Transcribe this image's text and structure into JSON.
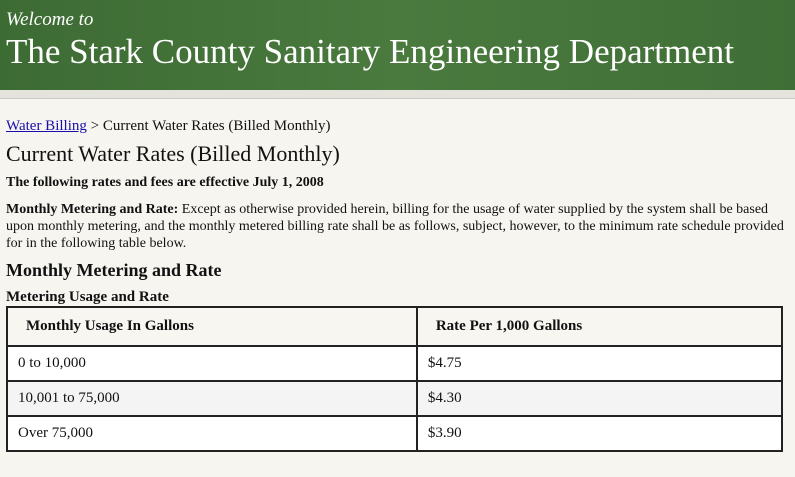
{
  "header": {
    "welcome": "Welcome to",
    "title": "The Stark County Sanitary Engineering Department"
  },
  "breadcrumb": {
    "link": "Water Billing",
    "separator": ">",
    "current": "Current Water Rates (Billed Monthly)"
  },
  "page_title": "Current Water Rates (Billed Monthly)",
  "effective": "The following rates and fees are effective July 1, 2008",
  "paragraph": {
    "label": "Monthly Metering and Rate:",
    "text": "Except as otherwise provided herein, billing for the usage of water supplied by the system shall be based upon monthly metering, and the monthly metered billing rate shall be as follows, subject, however, to the minimum rate schedule provided for in the following table below."
  },
  "section_heading": "Monthly Metering and Rate",
  "table": {
    "caption": "Metering Usage and Rate",
    "headers": [
      "Monthly Usage In Gallons",
      "Rate Per 1,000 Gallons"
    ],
    "rows": [
      [
        "0 to 10,000",
        "$4.75"
      ],
      [
        "10,001 to 75,000",
        "$4.30"
      ],
      [
        "Over 75,000",
        "$3.90"
      ]
    ]
  }
}
